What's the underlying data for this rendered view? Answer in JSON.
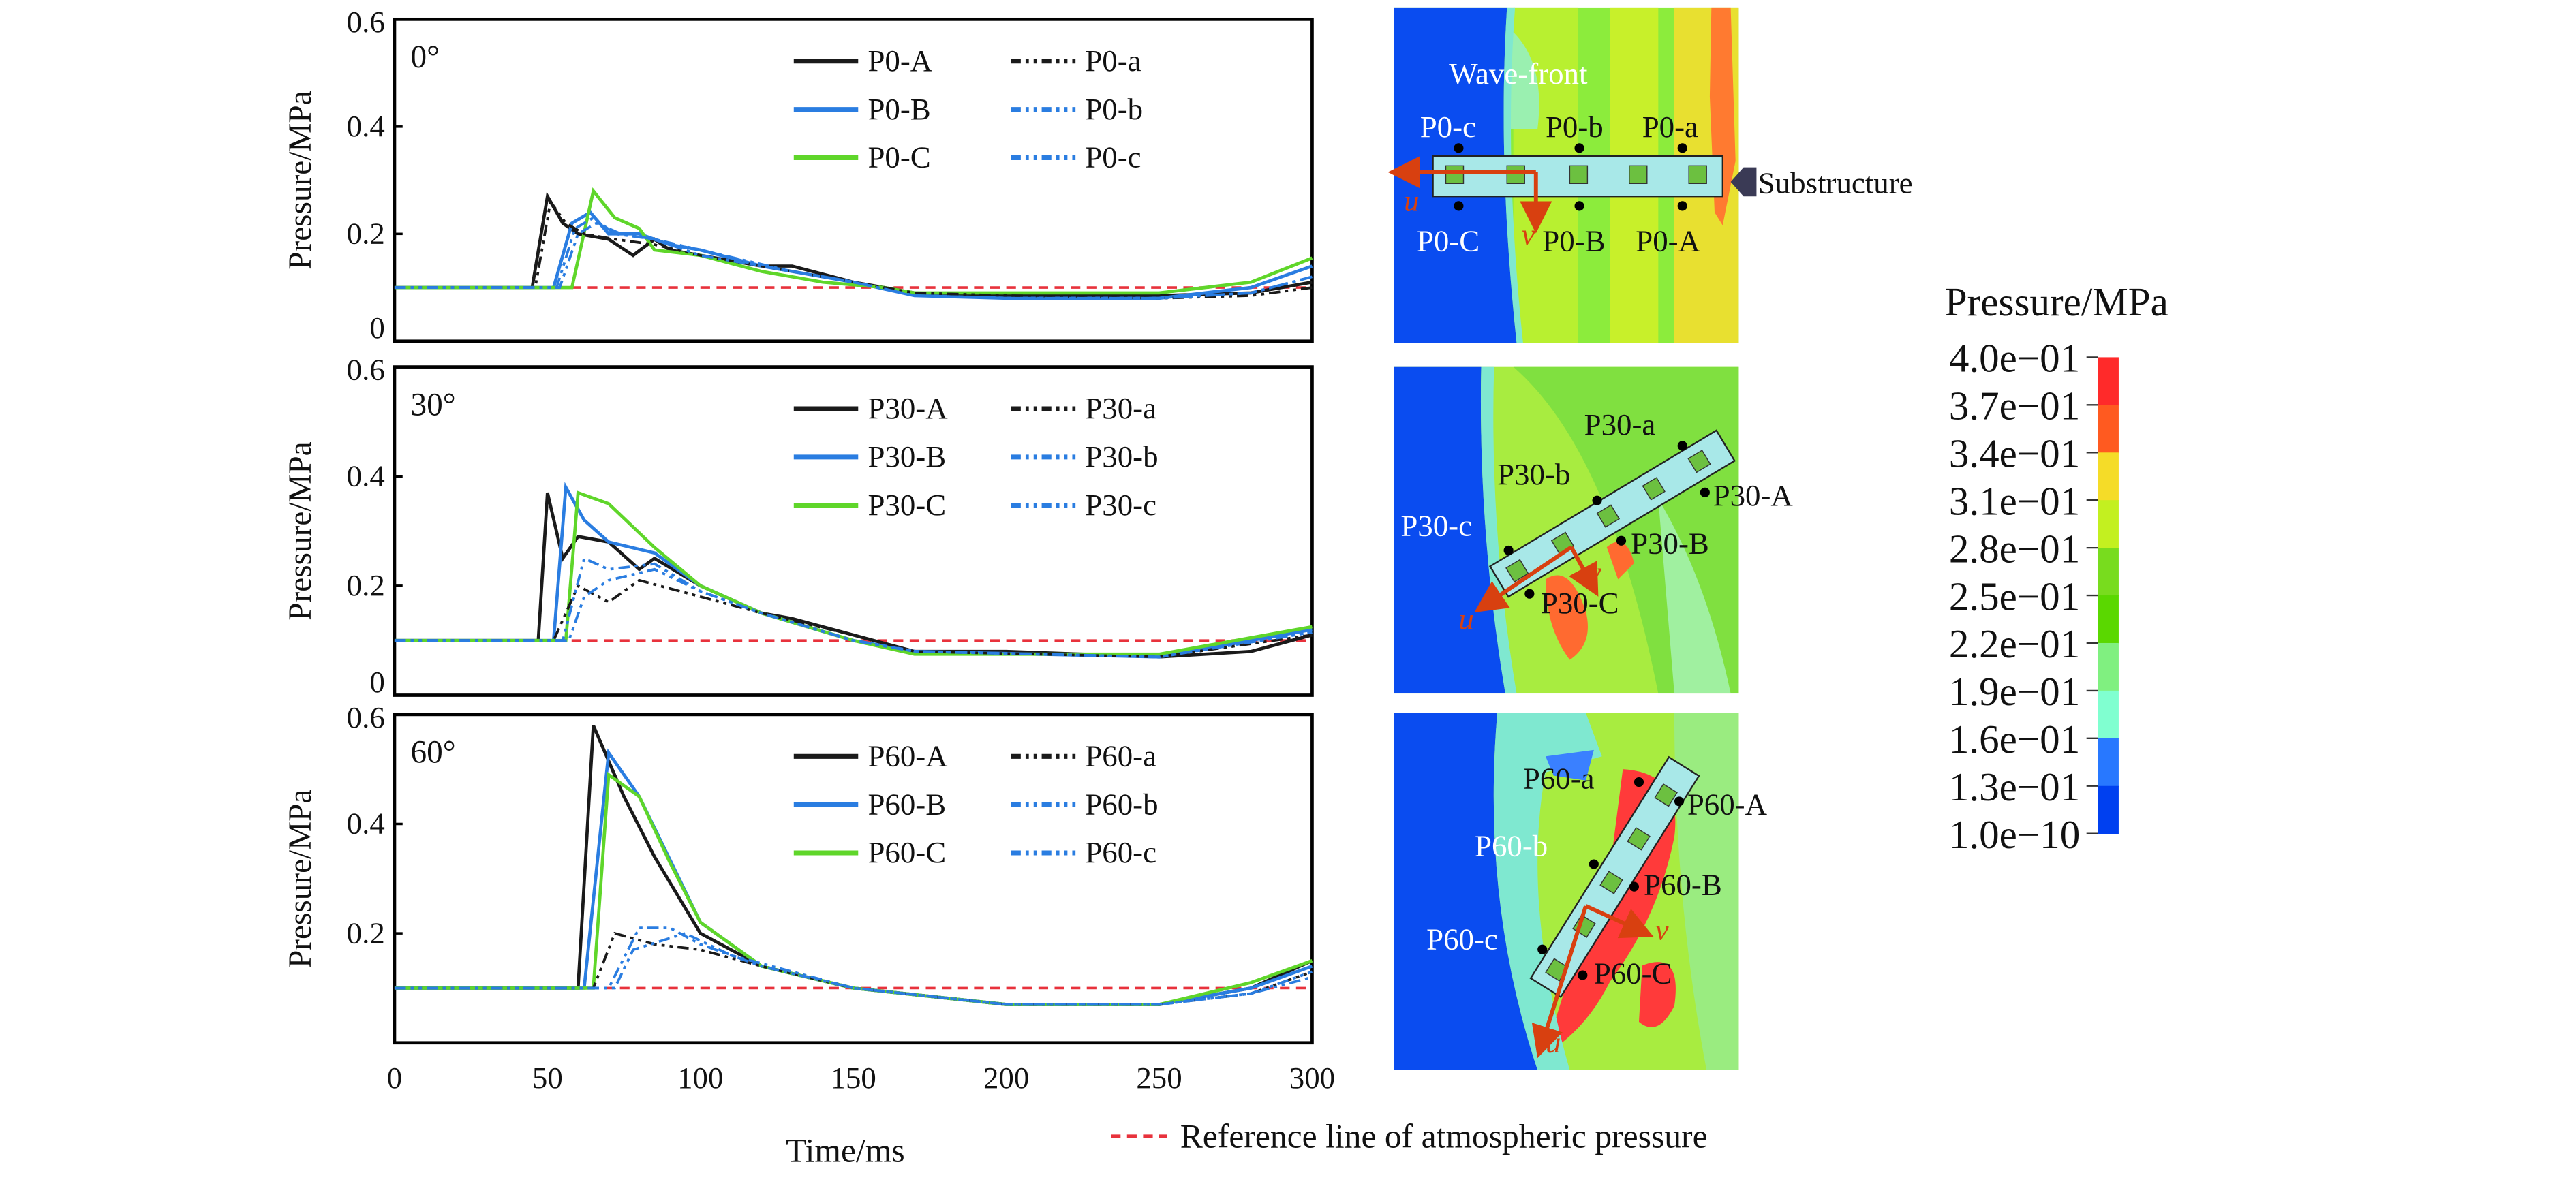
{
  "chart_data": [
    {
      "type": "line",
      "panel_label": "0°",
      "ylabel": "Pressure/MPa",
      "xlabel": "Time/ms",
      "xlim": [
        0,
        300
      ],
      "ylim": [
        0,
        0.6
      ],
      "yticks": [
        "0",
        "0.2",
        "0.4",
        "0.6"
      ],
      "reference_value": 0.1,
      "series": [
        {
          "name": "P0-A",
          "color": "#1a1a1a",
          "dash": "solid",
          "x": [
            0,
            45,
            50,
            55,
            60,
            70,
            78,
            85,
            90,
            100,
            120,
            130,
            150,
            170,
            200,
            250,
            280,
            300
          ],
          "y": [
            0.1,
            0.1,
            0.27,
            0.22,
            0.2,
            0.19,
            0.16,
            0.19,
            0.17,
            0.16,
            0.14,
            0.14,
            0.11,
            0.09,
            0.085,
            0.085,
            0.09,
            0.11
          ]
        },
        {
          "name": "P0-B",
          "color": "#2a7de1",
          "dash": "solid",
          "x": [
            0,
            52,
            58,
            64,
            70,
            80,
            90,
            100,
            120,
            150,
            170,
            200,
            250,
            280,
            300
          ],
          "y": [
            0.1,
            0.1,
            0.22,
            0.24,
            0.2,
            0.2,
            0.18,
            0.17,
            0.14,
            0.11,
            0.085,
            0.08,
            0.08,
            0.1,
            0.14
          ]
        },
        {
          "name": "P0-C",
          "color": "#5fd62a",
          "dash": "solid",
          "x": [
            0,
            58,
            65,
            72,
            80,
            85,
            100,
            120,
            140,
            160,
            170,
            200,
            250,
            280,
            300
          ],
          "y": [
            0.1,
            0.1,
            0.28,
            0.23,
            0.21,
            0.17,
            0.16,
            0.13,
            0.11,
            0.1,
            0.09,
            0.09,
            0.09,
            0.11,
            0.155
          ]
        },
        {
          "name": "P0-a",
          "color": "#1a1a1a",
          "dash": "dashdot",
          "x": [
            0,
            46,
            51,
            56,
            62,
            72,
            85,
            100,
            130,
            150,
            170,
            200,
            250,
            280,
            300
          ],
          "y": [
            0.1,
            0.1,
            0.26,
            0.22,
            0.2,
            0.19,
            0.18,
            0.16,
            0.13,
            0.11,
            0.09,
            0.085,
            0.08,
            0.085,
            0.1
          ]
        },
        {
          "name": "P0-b",
          "color": "#2a7de1",
          "dash": "dashdot",
          "x": [
            0,
            53,
            59,
            65,
            72,
            85,
            100,
            130,
            150,
            170,
            200,
            250,
            280,
            300
          ],
          "y": [
            0.1,
            0.1,
            0.21,
            0.23,
            0.2,
            0.19,
            0.17,
            0.13,
            0.11,
            0.085,
            0.08,
            0.08,
            0.09,
            0.12
          ]
        },
        {
          "name": "P0-c",
          "color": "#2a7de1",
          "dash": "dashdot",
          "x": [
            0,
            54,
            60,
            66,
            74,
            85,
            100,
            130,
            150,
            170,
            200,
            250,
            280,
            300
          ],
          "y": [
            0.1,
            0.1,
            0.2,
            0.22,
            0.2,
            0.19,
            0.16,
            0.13,
            0.11,
            0.085,
            0.08,
            0.08,
            0.09,
            0.12
          ]
        }
      ]
    },
    {
      "type": "line",
      "panel_label": "30°",
      "ylabel": "Pressure/MPa",
      "xlabel": "Time/ms",
      "xlim": [
        0,
        300
      ],
      "ylim": [
        0,
        0.6
      ],
      "yticks": [
        "0",
        "0.2",
        "0.4",
        "0.6"
      ],
      "reference_value": 0.1,
      "series": [
        {
          "name": "P30-A",
          "color": "#1a1a1a",
          "dash": "solid",
          "x": [
            0,
            47,
            50,
            55,
            60,
            70,
            80,
            85,
            100,
            120,
            130,
            150,
            170,
            200,
            250,
            280,
            300
          ],
          "y": [
            0.1,
            0.1,
            0.37,
            0.25,
            0.29,
            0.28,
            0.23,
            0.25,
            0.2,
            0.15,
            0.14,
            0.11,
            0.08,
            0.08,
            0.07,
            0.08,
            0.11
          ]
        },
        {
          "name": "P30-B",
          "color": "#2a7de1",
          "dash": "solid",
          "x": [
            0,
            52,
            56,
            62,
            70,
            85,
            100,
            120,
            150,
            170,
            250,
            300
          ],
          "y": [
            0.1,
            0.1,
            0.38,
            0.32,
            0.28,
            0.26,
            0.2,
            0.15,
            0.1,
            0.08,
            0.07,
            0.12
          ]
        },
        {
          "name": "P30-C",
          "color": "#5fd62a",
          "dash": "solid",
          "x": [
            0,
            56,
            60,
            70,
            85,
            100,
            120,
            150,
            170,
            250,
            300
          ],
          "y": [
            0.1,
            0.1,
            0.37,
            0.35,
            0.27,
            0.2,
            0.15,
            0.1,
            0.075,
            0.075,
            0.125
          ]
        },
        {
          "name": "P30-a",
          "color": "#1a1a1a",
          "dash": "dashdot",
          "x": [
            0,
            52,
            60,
            70,
            80,
            100,
            120,
            150,
            170,
            250,
            300
          ],
          "y": [
            0.1,
            0.1,
            0.2,
            0.17,
            0.21,
            0.18,
            0.15,
            0.11,
            0.08,
            0.07,
            0.11
          ]
        },
        {
          "name": "P30-b",
          "color": "#2a7de1",
          "dash": "dashdot",
          "x": [
            0,
            55,
            62,
            70,
            85,
            100,
            120,
            150,
            170,
            250,
            300
          ],
          "y": [
            0.1,
            0.1,
            0.25,
            0.23,
            0.24,
            0.19,
            0.15,
            0.1,
            0.08,
            0.07,
            0.115
          ]
        },
        {
          "name": "P30-c",
          "color": "#2a7de1",
          "dash": "dashdot",
          "x": [
            0,
            57,
            62,
            70,
            85,
            100,
            120,
            150,
            170,
            250,
            300
          ],
          "y": [
            0.1,
            0.1,
            0.18,
            0.21,
            0.23,
            0.19,
            0.15,
            0.1,
            0.08,
            0.07,
            0.115
          ]
        }
      ]
    },
    {
      "type": "line",
      "panel_label": "60°",
      "ylabel": "Pressure/MPa",
      "xlabel": "Time/ms",
      "xlim": [
        0,
        300
      ],
      "ylim": [
        0,
        0.6
      ],
      "yticks": [
        "0.2",
        "0.4",
        "0.6"
      ],
      "xticks": [
        "0",
        "50",
        "100",
        "150",
        "200",
        "250",
        "300"
      ],
      "reference_value": 0.1,
      "series": [
        {
          "name": "P60-A",
          "color": "#1a1a1a",
          "dash": "solid",
          "x": [
            0,
            60,
            65,
            75,
            85,
            100,
            120,
            150,
            200,
            250,
            280,
            300
          ],
          "y": [
            0.1,
            0.1,
            0.58,
            0.45,
            0.34,
            0.2,
            0.14,
            0.1,
            0.07,
            0.07,
            0.1,
            0.15
          ]
        },
        {
          "name": "P60-B",
          "color": "#2a7de1",
          "dash": "solid",
          "x": [
            0,
            62,
            70,
            80,
            100,
            120,
            150,
            200,
            250,
            280,
            300
          ],
          "y": [
            0.1,
            0.1,
            0.53,
            0.45,
            0.22,
            0.14,
            0.1,
            0.07,
            0.07,
            0.1,
            0.14
          ]
        },
        {
          "name": "P60-C",
          "color": "#5fd62a",
          "dash": "solid",
          "x": [
            0,
            65,
            70,
            80,
            90,
            100,
            120,
            150,
            200,
            250,
            280,
            300
          ],
          "y": [
            0.1,
            0.1,
            0.49,
            0.45,
            0.33,
            0.22,
            0.14,
            0.1,
            0.07,
            0.07,
            0.11,
            0.15
          ]
        },
        {
          "name": "P60-a",
          "color": "#1a1a1a",
          "dash": "dashdot",
          "x": [
            0,
            65,
            72,
            85,
            100,
            120,
            150,
            200,
            250,
            280,
            300
          ],
          "y": [
            0.1,
            0.1,
            0.2,
            0.18,
            0.17,
            0.14,
            0.1,
            0.07,
            0.07,
            0.09,
            0.13
          ]
        },
        {
          "name": "P60-b",
          "color": "#2a7de1",
          "dash": "dashdot",
          "x": [
            0,
            70,
            80,
            90,
            100,
            120,
            150,
            200,
            250,
            280,
            300
          ],
          "y": [
            0.1,
            0.1,
            0.21,
            0.21,
            0.18,
            0.14,
            0.1,
            0.07,
            0.07,
            0.09,
            0.13
          ]
        },
        {
          "name": "P60-c",
          "color": "#2a7de1",
          "dash": "dashdot",
          "x": [
            0,
            72,
            78,
            95,
            110,
            130,
            150,
            200,
            250,
            280,
            300
          ],
          "y": [
            0.1,
            0.1,
            0.17,
            0.2,
            0.16,
            0.13,
            0.1,
            0.07,
            0.07,
            0.09,
            0.12
          ]
        }
      ]
    }
  ],
  "reference_legend": {
    "label": "Reference line of atmospheric pressure",
    "color": "#e8323c"
  },
  "contour_maps": [
    {
      "labels": {
        "wavefront": "Wave-front",
        "substructure": "Substructure",
        "c": "P0-c",
        "b": "P0-b",
        "a": "P0-a",
        "C": "P0-C",
        "B": "P0-B",
        "A": "P0-A",
        "u": "u",
        "v": "v"
      }
    },
    {
      "labels": {
        "a": "P30-a",
        "b": "P30-b",
        "c": "P30-c",
        "A": "P30-A",
        "B": "P30-B",
        "C": "P30-C",
        "u": "u",
        "v": "v"
      }
    },
    {
      "labels": {
        "a": "P60-a",
        "A": "P60-A",
        "b": "P60-b",
        "B": "P60-B",
        "c": "P60-c",
        "C": "P60-C",
        "u": "u",
        "v": "v"
      }
    }
  ],
  "colorbar": {
    "title": "Pressure/MPa",
    "labels": [
      "4.0e−01",
      "3.7e−01",
      "3.4e−01",
      "3.1e−01",
      "2.8e−01",
      "2.5e−01",
      "2.2e−01",
      "1.9e−01",
      "1.6e−01",
      "1.3e−01",
      "1.0e−10"
    ],
    "colors": [
      "#ff2a2a",
      "#ff5a20",
      "#f5dc28",
      "#c3f020",
      "#78dc1e",
      "#5ad800",
      "#80f080",
      "#80ffd0",
      "#2878ff",
      "#0040f0"
    ]
  }
}
